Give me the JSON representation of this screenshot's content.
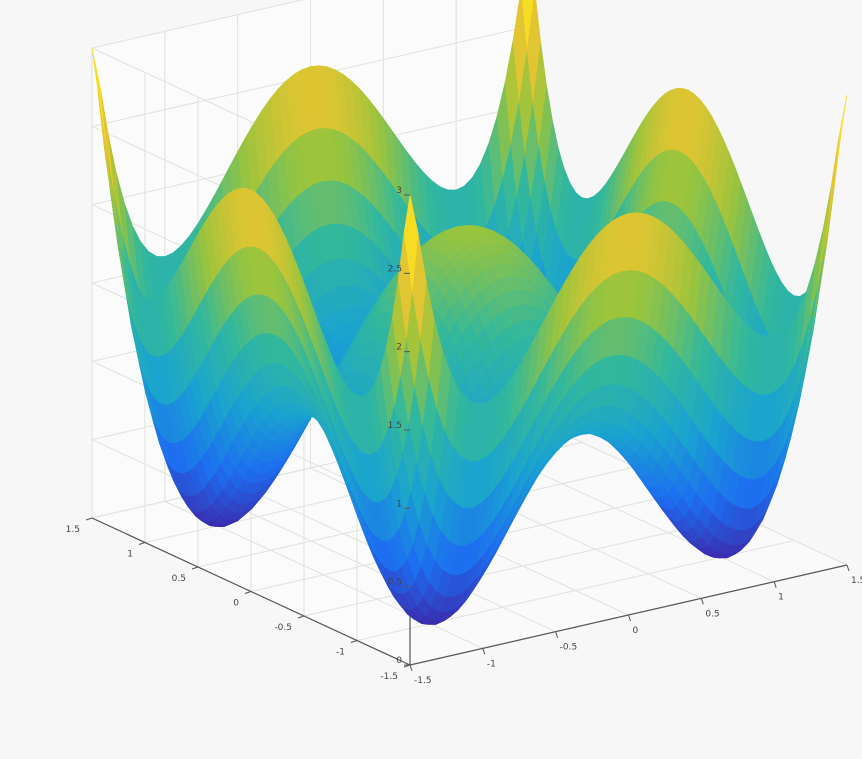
{
  "chart_data": {
    "type": "surface3d",
    "function": "z = min(3, (x^2 - 1)^2 + (y^2 - 1)^2)",
    "x": {
      "range": [
        -1.5,
        1.5
      ],
      "ticks": [
        "-1.5",
        "-1",
        "-0.5",
        "0",
        "0.5",
        "1",
        "1.5"
      ]
    },
    "y": {
      "range": [
        -1.5,
        1.5
      ],
      "ticks": [
        "-1.5",
        "-1",
        "-0.5",
        "0",
        "0.5",
        "1",
        "1.5"
      ]
    },
    "z": {
      "range": [
        0,
        3
      ],
      "ticks": [
        "0",
        "0.5",
        "1",
        "1.5",
        "2",
        "2.5",
        "3"
      ],
      "clip_max": 3
    },
    "minima": [
      {
        "x": -1,
        "y": -1,
        "z": 0
      },
      {
        "x": 1,
        "y": -1,
        "z": 0
      },
      {
        "x": -1,
        "y": 1,
        "z": 0
      },
      {
        "x": 1,
        "y": 1,
        "z": 0
      }
    ],
    "saddle": {
      "x": 0,
      "y": 0,
      "z": 2
    },
    "colormap": [
      "#3e26a8",
      "#1d6ef0",
      "#1aa3d0",
      "#33b89c",
      "#9bc43c",
      "#f5c52f",
      "#f9fb15"
    ],
    "grid": true,
    "legend": "none"
  }
}
